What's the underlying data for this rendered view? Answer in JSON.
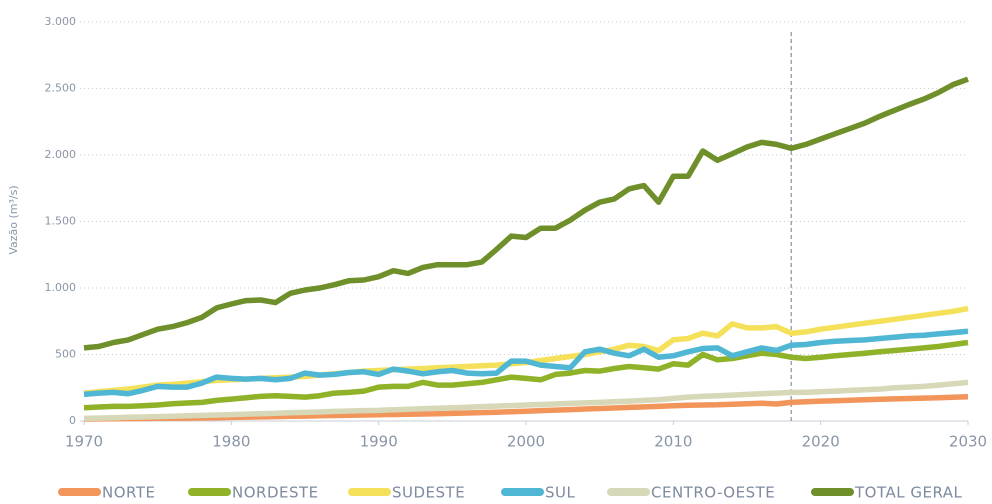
{
  "chart_data": {
    "type": "line",
    "y_label": "Vazão (m³/s)",
    "x": [
      1970,
      1971,
      1972,
      1973,
      1974,
      1975,
      1976,
      1977,
      1978,
      1979,
      1980,
      1981,
      1982,
      1983,
      1984,
      1985,
      1986,
      1987,
      1988,
      1989,
      1990,
      1991,
      1992,
      1993,
      1994,
      1995,
      1996,
      1997,
      1998,
      1999,
      2000,
      2001,
      2002,
      2003,
      2004,
      2005,
      2006,
      2007,
      2008,
      2009,
      2010,
      2011,
      2012,
      2013,
      2014,
      2015,
      2016,
      2017,
      2018,
      2019,
      2020,
      2021,
      2022,
      2023,
      2024,
      2025,
      2026,
      2027,
      2028,
      2029,
      2030
    ],
    "xlim": [
      1970,
      2030
    ],
    "xticks": [
      1970,
      1980,
      1990,
      2000,
      2010,
      2020,
      2030
    ],
    "ylim": [
      0,
      3000
    ],
    "yticks": [
      0,
      {
        "value": 500,
        "label": "500"
      },
      {
        "value": 1000,
        "label": "1.000"
      },
      {
        "value": 1500,
        "label": "1.500"
      },
      {
        "value": 2000,
        "label": "2.000"
      },
      {
        "value": 2500,
        "label": "2.500"
      },
      {
        "value": 3000,
        "label": "3.000"
      }
    ],
    "grid": true,
    "vline_x": 2018,
    "legend": "bottom",
    "series": [
      {
        "name": "NORTE",
        "color": "#f2955a",
        "values": [
          15,
          16,
          17,
          18,
          19,
          20,
          21,
          22,
          23,
          25,
          27,
          29,
          31,
          33,
          35,
          37,
          39,
          41,
          43,
          45,
          47,
          49,
          51,
          53,
          55,
          57,
          60,
          63,
          66,
          70,
          74,
          78,
          82,
          86,
          90,
          94,
          98,
          102,
          106,
          110,
          114,
          118,
          120,
          122,
          126,
          130,
          134,
          128,
          140,
          145,
          150,
          153,
          156,
          160,
          163,
          166,
          169,
          172,
          175,
          178,
          182
        ]
      },
      {
        "name": "NORDESTE",
        "color": "#8fb229",
        "values": [
          100,
          105,
          110,
          110,
          115,
          120,
          130,
          135,
          140,
          155,
          165,
          175,
          185,
          190,
          185,
          180,
          190,
          210,
          215,
          225,
          255,
          260,
          260,
          290,
          270,
          270,
          280,
          290,
          310,
          330,
          320,
          310,
          350,
          360,
          380,
          375,
          395,
          410,
          400,
          390,
          430,
          420,
          500,
          460,
          470,
          490,
          510,
          500,
          480,
          470,
          480,
          490,
          500,
          510,
          520,
          530,
          540,
          550,
          560,
          575,
          590
        ]
      },
      {
        "name": "SUDESTE",
        "color": "#f5e05a",
        "values": [
          210,
          220,
          230,
          240,
          255,
          270,
          275,
          285,
          295,
          305,
          310,
          315,
          320,
          325,
          330,
          335,
          345,
          355,
          365,
          375,
          380,
          385,
          390,
          395,
          400,
          405,
          410,
          415,
          420,
          430,
          440,
          455,
          470,
          485,
          500,
          520,
          540,
          570,
          560,
          530,
          610,
          620,
          660,
          640,
          730,
          700,
          700,
          710,
          660,
          670,
          690,
          705,
          720,
          735,
          750,
          765,
          780,
          795,
          810,
          825,
          845
        ]
      },
      {
        "name": "SUL",
        "color": "#4fb6d3",
        "values": [
          200,
          210,
          215,
          205,
          230,
          260,
          255,
          255,
          285,
          330,
          320,
          315,
          320,
          310,
          320,
          360,
          345,
          350,
          365,
          370,
          350,
          390,
          375,
          355,
          370,
          380,
          360,
          355,
          360,
          450,
          450,
          420,
          410,
          400,
          520,
          540,
          510,
          490,
          540,
          480,
          490,
          520,
          545,
          550,
          490,
          520,
          550,
          530,
          570,
          575,
          590,
          600,
          605,
          610,
          620,
          630,
          640,
          645,
          655,
          665,
          675
        ]
      },
      {
        "name": "CENTRO-OESTE",
        "color": "#d6d8b8",
        "values": [
          20,
          22,
          25,
          28,
          30,
          33,
          36,
          39,
          42,
          45,
          48,
          52,
          55,
          58,
          62,
          65,
          68,
          72,
          75,
          78,
          80,
          84,
          88,
          92,
          96,
          100,
          104,
          108,
          112,
          116,
          120,
          124,
          128,
          132,
          136,
          140,
          145,
          150,
          155,
          160,
          170,
          180,
          185,
          190,
          195,
          200,
          205,
          210,
          215,
          215,
          220,
          225,
          230,
          235,
          240,
          250,
          255,
          260,
          270,
          280,
          290
        ]
      },
      {
        "name": "TOTAL GERAL",
        "color": "#6f8f2a",
        "values": [
          550,
          560,
          590,
          610,
          650,
          690,
          710,
          740,
          780,
          850,
          880,
          905,
          910,
          890,
          960,
          985,
          1000,
          1025,
          1055,
          1060,
          1085,
          1130,
          1110,
          1155,
          1175,
          1175,
          1175,
          1195,
          1290,
          1390,
          1380,
          1450,
          1450,
          1510,
          1585,
          1645,
          1670,
          1745,
          1770,
          1645,
          1840,
          1840,
          2030,
          1960,
          2010,
          2060,
          2095,
          2080,
          2050,
          2080,
          2120,
          2160,
          2200,
          2240,
          2290,
          2335,
          2380,
          2420,
          2470,
          2530,
          2570
        ]
      }
    ]
  }
}
